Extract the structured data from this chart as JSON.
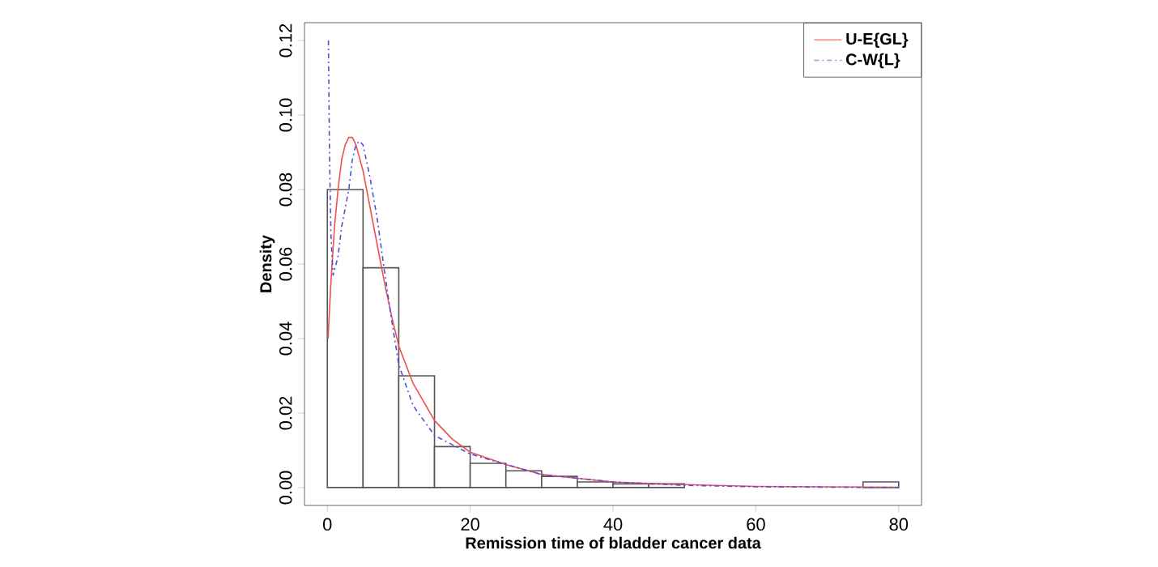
{
  "chart_data": {
    "type": "histogram",
    "xlabel": "Remission time of bladder cancer data",
    "ylabel": "Density",
    "bins": [
      0,
      5,
      10,
      15,
      20,
      25,
      30,
      35,
      40,
      45,
      50,
      55,
      60,
      65,
      70,
      75,
      80
    ],
    "values": [
      0.08,
      0.059,
      0.03,
      0.011,
      0.0065,
      0.0045,
      0.003,
      0.0015,
      0.001,
      0.001,
      0,
      0,
      0,
      0,
      0,
      0.0015
    ],
    "color": "#555555",
    "series": [
      {
        "name": "U-E{GL}",
        "type": "line",
        "color": "#f05050",
        "line_style": "solid",
        "x": [
          0.1,
          0.5,
          1,
          1.5,
          2,
          2.5,
          3,
          3.5,
          4,
          5,
          6,
          7,
          7.5,
          8,
          9,
          10,
          12,
          15,
          17.5,
          20,
          25,
          30,
          35,
          40,
          45,
          50,
          60,
          70,
          80
        ],
        "values": [
          0.04,
          0.055,
          0.07,
          0.08,
          0.088,
          0.092,
          0.094,
          0.094,
          0.092,
          0.085,
          0.075,
          0.065,
          0.06,
          0.055,
          0.046,
          0.038,
          0.028,
          0.018,
          0.013,
          0.0095,
          0.0062,
          0.0035,
          0.0025,
          0.0015,
          0.0011,
          0.0008,
          0.0003,
          0.0002,
          0.0001
        ]
      },
      {
        "name": "C-W{L}",
        "type": "line",
        "color": "#5050e0",
        "line_style": "dashed",
        "x": [
          0.15,
          0.3,
          0.5,
          0.8,
          1.5,
          2,
          3,
          3.5,
          4,
          4.5,
          5,
          6,
          7,
          7.5,
          8,
          9,
          10,
          12,
          15,
          20,
          25,
          30,
          40,
          50,
          60,
          80
        ],
        "values": [
          0.12,
          0.09,
          0.068,
          0.057,
          0.062,
          0.07,
          0.08,
          0.088,
          0.092,
          0.093,
          0.092,
          0.083,
          0.072,
          0.065,
          0.058,
          0.045,
          0.033,
          0.022,
          0.014,
          0.009,
          0.0062,
          0.0035,
          0.0015,
          0.0006,
          0.0002,
          0
        ]
      }
    ],
    "xlim": [
      -3.2,
      83.2
    ],
    "ylim": [
      -0.0048,
      0.1248
    ],
    "xticks": [
      0,
      20,
      40,
      60,
      80
    ],
    "yticks": [
      {
        "value": 0,
        "label": "0.00"
      },
      {
        "value": 0.02,
        "label": "0.02"
      },
      {
        "value": 0.04,
        "label": "0.04"
      },
      {
        "value": 0.06,
        "label": "0.06"
      },
      {
        "value": 0.08,
        "label": "0.08"
      },
      {
        "value": 0.1,
        "label": "0.10"
      },
      {
        "value": 0.12,
        "label": "0.12"
      }
    ],
    "grid": false,
    "legend": "top right"
  }
}
